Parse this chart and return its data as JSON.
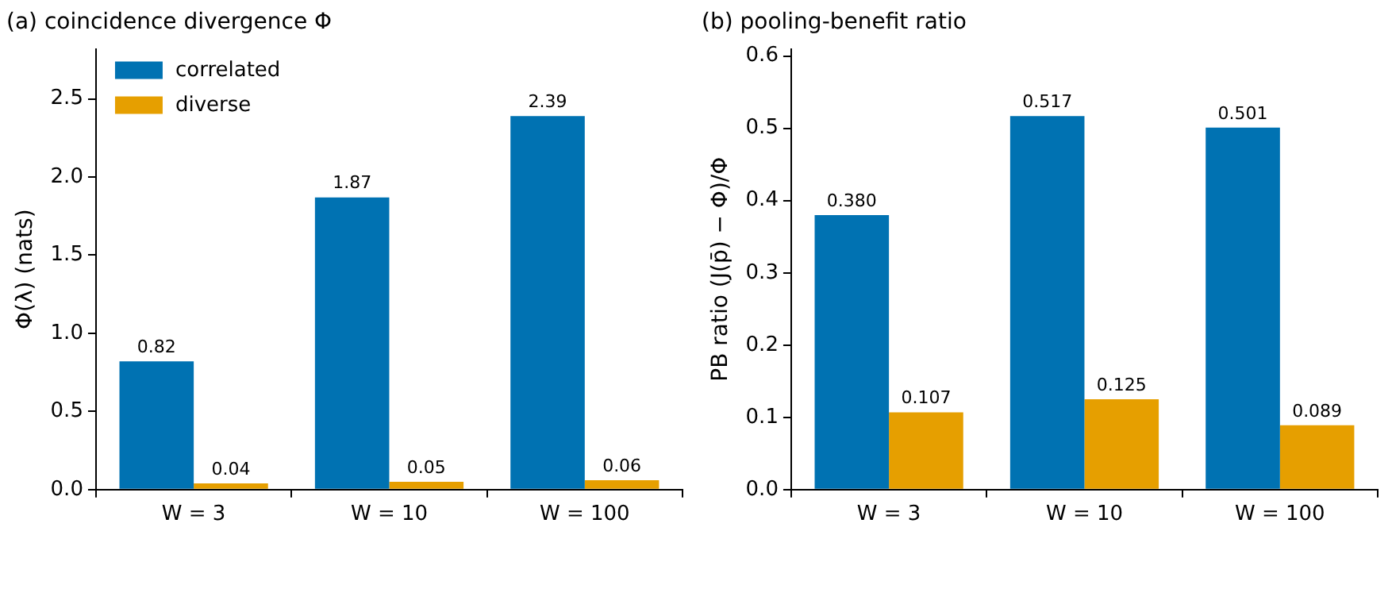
{
  "chart_data": [
    {
      "type": "bar",
      "title": "(a) coincidence divergence Φ",
      "ylabel": "Φ(λ) (nats)",
      "categories": [
        "W = 3",
        "W = 10",
        "W = 100"
      ],
      "series": [
        {
          "name": "correlated",
          "color": "#0072b2",
          "values": [
            0.82,
            1.87,
            2.39
          ],
          "value_labels": [
            "0.82",
            "1.87",
            "2.39"
          ]
        },
        {
          "name": "diverse",
          "color": "#e69f00",
          "values": [
            0.04,
            0.05,
            0.06
          ],
          "value_labels": [
            "0.04",
            "0.05",
            "0.06"
          ]
        }
      ],
      "ylim": [
        0,
        2.82
      ],
      "yticks": [
        {
          "value": 0,
          "label": "0.0"
        },
        {
          "value": 0.5,
          "label": "0.5"
        },
        {
          "value": 1,
          "label": "1.0"
        },
        {
          "value": 1.5,
          "label": "1.5"
        },
        {
          "value": 2,
          "label": "2.0"
        },
        {
          "value": 2.5,
          "label": "2.5"
        }
      ],
      "grid": false,
      "legend": "top left"
    },
    {
      "type": "bar",
      "title": "(b) pooling-benefit ratio",
      "ylabel": "PB ratio (J(p̄) − Φ)/Φ",
      "categories": [
        "W = 3",
        "W = 10",
        "W = 100"
      ],
      "series": [
        {
          "color": "#0072b2",
          "values": [
            0.38,
            0.517,
            0.501
          ],
          "value_labels": [
            "0.380",
            "0.517",
            "0.501"
          ]
        },
        {
          "color": "#e69f00",
          "values": [
            0.107,
            0.125,
            0.089
          ],
          "value_labels": [
            "0.107",
            "0.125",
            "0.089"
          ]
        }
      ],
      "ylim": [
        0,
        0.61
      ],
      "yticks": [
        {
          "value": 0,
          "label": "0.0"
        },
        {
          "value": 0.1,
          "label": "0.1"
        },
        {
          "value": 0.2,
          "label": "0.2"
        },
        {
          "value": 0.3,
          "label": "0.3"
        },
        {
          "value": 0.4,
          "label": "0.4"
        },
        {
          "value": 0.5,
          "label": "0.5"
        },
        {
          "value": 0.6,
          "label": "0.6"
        }
      ],
      "grid": false,
      "legend": false
    }
  ]
}
